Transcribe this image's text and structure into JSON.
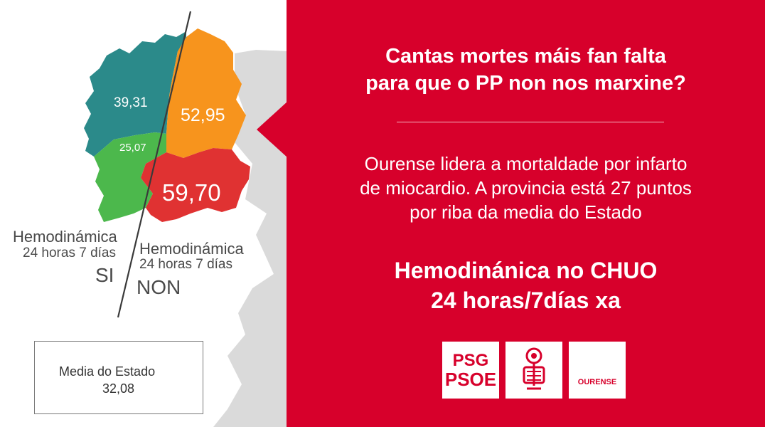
{
  "map": {
    "values": {
      "a_coruna": "39,31",
      "lugo": "52,95",
      "pontevedra": "25,07",
      "ourense": "59,70"
    },
    "colors": {
      "a_coruna": "#2b8a8a",
      "lugo": "#f7941d",
      "pontevedra": "#4cb84c",
      "ourense": "#e03232",
      "background_land": "#dadada"
    },
    "label_si": {
      "line1": "Hemodinámica",
      "line2": "24 horas 7 días",
      "answer": "SI"
    },
    "label_non": {
      "line1": "Hemodinámica",
      "line2": "24 horas 7 días",
      "answer": "NON"
    },
    "media": {
      "label": "Media do Estado",
      "value": "32,08"
    }
  },
  "panel": {
    "background": "#d7002b",
    "headline_line1": "Cantas mortes máis fan falta",
    "headline_line2": "para que o PP non nos marxine?",
    "body_line1": "Ourense lidera a mortaldade por infarto",
    "body_line2": "de miocardio. A provincia está 27 puntos",
    "body_line3": "por riba da media do Estado",
    "cta_line1": "Hemodinánica no CHUO",
    "cta_line2": "24 horas/7días xa"
  },
  "logos": {
    "psg_line1": "PSG",
    "psg_line2": "PSOE",
    "rose_icon": "rose-fist-icon",
    "ourense": "OURENSE"
  }
}
